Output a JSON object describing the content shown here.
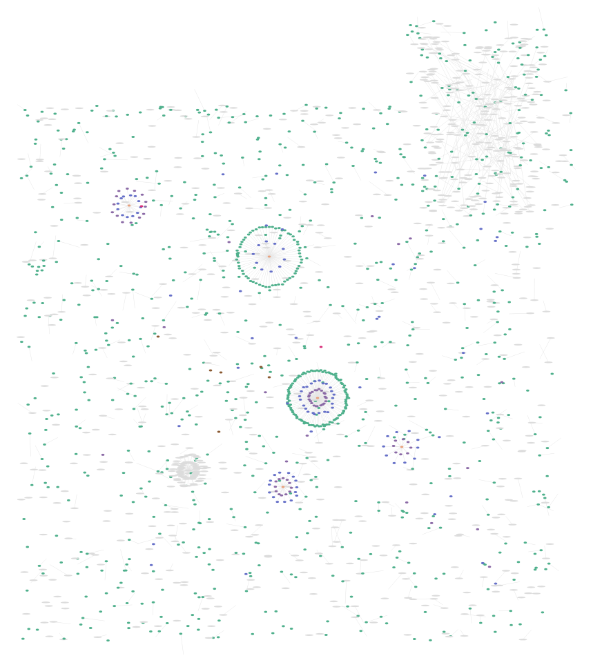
{
  "graph": {
    "type": "network",
    "colors": {
      "leaf_node": "#4fb08c",
      "hub_node": "#e9a27e",
      "blue_node": "#6670c8",
      "purple_node": "#8b6aa6",
      "highlight_node": "#d8307a",
      "brown_node": "#8a5a32",
      "label_node": "#dcdcdc",
      "edge": "#e6e6e6"
    },
    "clusters": [
      {
        "id": "cluster-left",
        "hub": "hub_node",
        "members": [
          "blue_node",
          "purple_node",
          "highlight_node"
        ]
      },
      {
        "id": "cluster-upper-middle",
        "hub": "hub_node",
        "members": [
          "blue_node",
          "leaf_node"
        ]
      },
      {
        "id": "cluster-center",
        "hub": "hub_node",
        "members": [
          "blue_node",
          "purple_node",
          "leaf_node"
        ]
      },
      {
        "id": "cluster-lower-right",
        "hub": "hub_node",
        "members": [
          "blue_node",
          "purple_node"
        ]
      },
      {
        "id": "cluster-lower-middle",
        "hub": "hub_node",
        "members": [
          "blue_node",
          "purple_node"
        ]
      },
      {
        "id": "cluster-lower-left",
        "hub": "label_node",
        "members": [
          "label_node"
        ]
      },
      {
        "id": "cluster-top-right",
        "hub": "label_node",
        "members": [
          "label_node",
          "leaf_node"
        ]
      }
    ]
  }
}
